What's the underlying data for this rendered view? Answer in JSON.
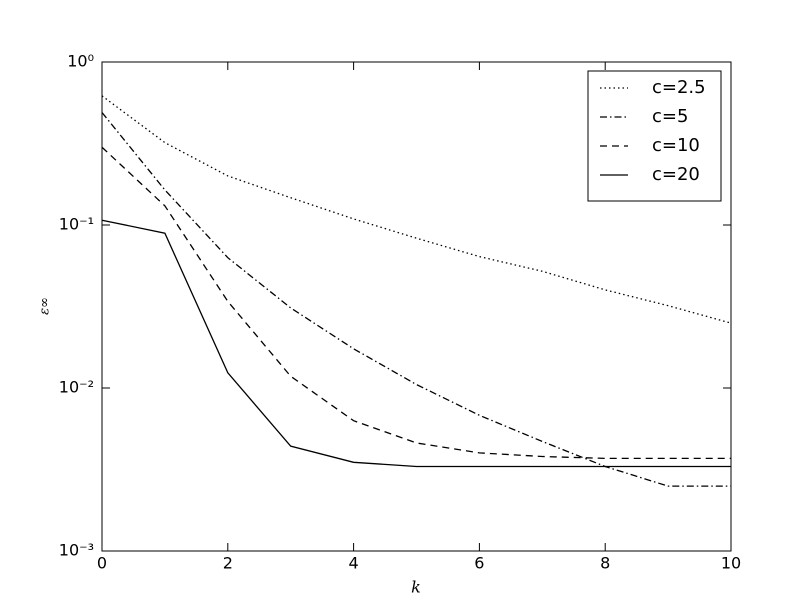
{
  "chart_data": {
    "type": "line",
    "xlabel": "k",
    "ylabel": "ε∞",
    "log_y": true,
    "legend_loc": "upper right",
    "x": [
      0,
      1,
      2,
      3,
      4,
      5,
      6,
      7,
      8,
      9,
      10
    ],
    "xlim": [
      0,
      10
    ],
    "xticks": [
      0,
      2,
      4,
      6,
      8,
      10
    ],
    "ylim": [
      0.001,
      1
    ],
    "yticks": [
      {
        "value": 0.001,
        "label": "10⁻³"
      },
      {
        "value": 0.01,
        "label": "10⁻²"
      },
      {
        "value": 0.1,
        "label": "10⁻¹"
      },
      {
        "value": 1,
        "label": "10⁰"
      }
    ],
    "series": [
      {
        "name": "c=2.5",
        "color": "#000000",
        "linestyle": "dotted",
        "values": [
          0.62,
          0.32,
          0.2,
          0.147,
          0.109,
          0.083,
          0.064,
          0.052,
          0.04,
          0.032,
          0.025
        ]
      },
      {
        "name": "c=5",
        "color": "#000000",
        "linestyle": "dashdot",
        "values": [
          0.49,
          0.164,
          0.063,
          0.031,
          0.0174,
          0.0105,
          0.0068,
          0.0047,
          0.0033,
          0.0025,
          0.0025
        ]
      },
      {
        "name": "c=10",
        "color": "#000000",
        "linestyle": "dashed",
        "values": [
          0.3,
          0.131,
          0.034,
          0.0118,
          0.0063,
          0.0046,
          0.004,
          0.0038,
          0.0037,
          0.0037,
          0.0037
        ]
      },
      {
        "name": "c=20",
        "color": "#000000",
        "linestyle": "solid",
        "values": [
          0.107,
          0.089,
          0.0124,
          0.0044,
          0.0035,
          0.0033,
          0.0033,
          0.0033,
          0.0033,
          0.0033,
          0.0033
        ]
      }
    ]
  }
}
